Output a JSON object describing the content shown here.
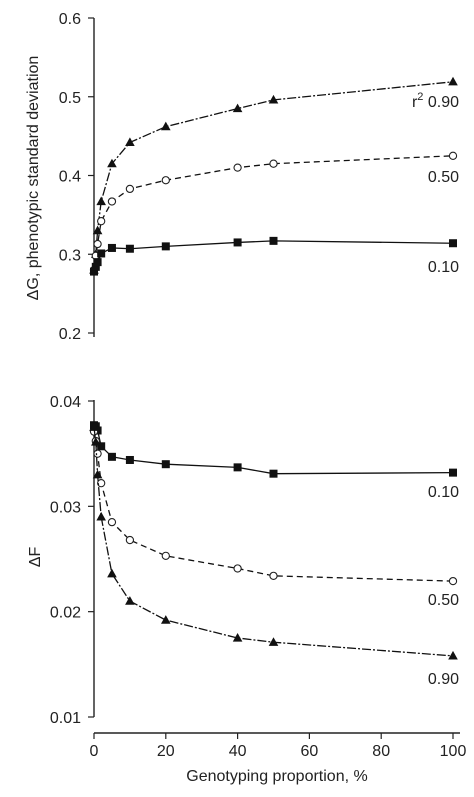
{
  "chart_data": [
    {
      "type": "line",
      "title": "",
      "xlabel": "",
      "ylabel": "ΔG, phenotypic standard deviation",
      "xlim": [
        0,
        100
      ],
      "ylim": [
        0.2,
        0.6
      ],
      "yticks": [
        "0.2",
        "0.3",
        "0.4",
        "0.5",
        "0.6"
      ],
      "grid": false,
      "series": [
        {
          "name": "0.90",
          "label": "r² 0.90",
          "label_prefix": "r",
          "label_sup": "2",
          "label_value": "0.90",
          "marker": "triangle",
          "line_style": "solid",
          "x": [
            0,
            0.5,
            1,
            2,
            5,
            10,
            20,
            40,
            50,
            100
          ],
          "y": [
            0.28,
            0.3,
            0.33,
            0.367,
            0.415,
            0.442,
            0.462,
            0.485,
            0.496,
            0.519
          ]
        },
        {
          "name": "0.50",
          "label": "0.50",
          "marker": "circle-open",
          "line_style": "dashed",
          "x": [
            0,
            0.5,
            1,
            2,
            5,
            10,
            20,
            40,
            50,
            100
          ],
          "y": [
            0.28,
            0.298,
            0.313,
            0.342,
            0.367,
            0.383,
            0.394,
            0.41,
            0.415,
            0.425
          ]
        },
        {
          "name": "0.10",
          "label": "0.10",
          "marker": "square",
          "line_style": "solid",
          "x": [
            0,
            0.5,
            1,
            2,
            5,
            10,
            20,
            40,
            50,
            100
          ],
          "y": [
            0.278,
            0.284,
            0.29,
            0.301,
            0.308,
            0.307,
            0.31,
            0.315,
            0.317,
            0.314
          ]
        }
      ]
    },
    {
      "type": "line",
      "title": "",
      "xlabel": "Genotyping proportion, %",
      "ylabel": "ΔF",
      "xlim": [
        0,
        100
      ],
      "ylim": [
        0.01,
        0.04
      ],
      "yticks": [
        "0.01",
        "0.02",
        "0.03",
        "0.04"
      ],
      "xticks": [
        "0",
        "20",
        "40",
        "60",
        "80",
        "100"
      ],
      "grid": false,
      "series": [
        {
          "name": "0.10",
          "label": "0.10",
          "marker": "square",
          "line_style": "solid",
          "x": [
            0,
            0.5,
            1,
            2,
            5,
            10,
            20,
            40,
            50,
            100
          ],
          "y": [
            0.0377,
            0.0376,
            0.0372,
            0.0357,
            0.0347,
            0.0344,
            0.034,
            0.0337,
            0.0331,
            0.0332
          ]
        },
        {
          "name": "0.50",
          "label": "0.50",
          "marker": "circle-open",
          "line_style": "dashed",
          "x": [
            0,
            0.5,
            1,
            2,
            5,
            10,
            20,
            40,
            50,
            100
          ],
          "y": [
            0.0371,
            0.0362,
            0.035,
            0.0322,
            0.0285,
            0.0268,
            0.0253,
            0.0241,
            0.0234,
            0.0229
          ]
        },
        {
          "name": "0.90",
          "label": "0.90",
          "marker": "triangle",
          "line_style": "solid",
          "x": [
            0,
            0.5,
            1,
            2,
            5,
            10,
            20,
            40,
            50,
            100
          ],
          "y": [
            0.0375,
            0.0361,
            0.033,
            0.029,
            0.0236,
            0.021,
            0.0192,
            0.0175,
            0.0171,
            0.0158
          ]
        }
      ]
    }
  ]
}
